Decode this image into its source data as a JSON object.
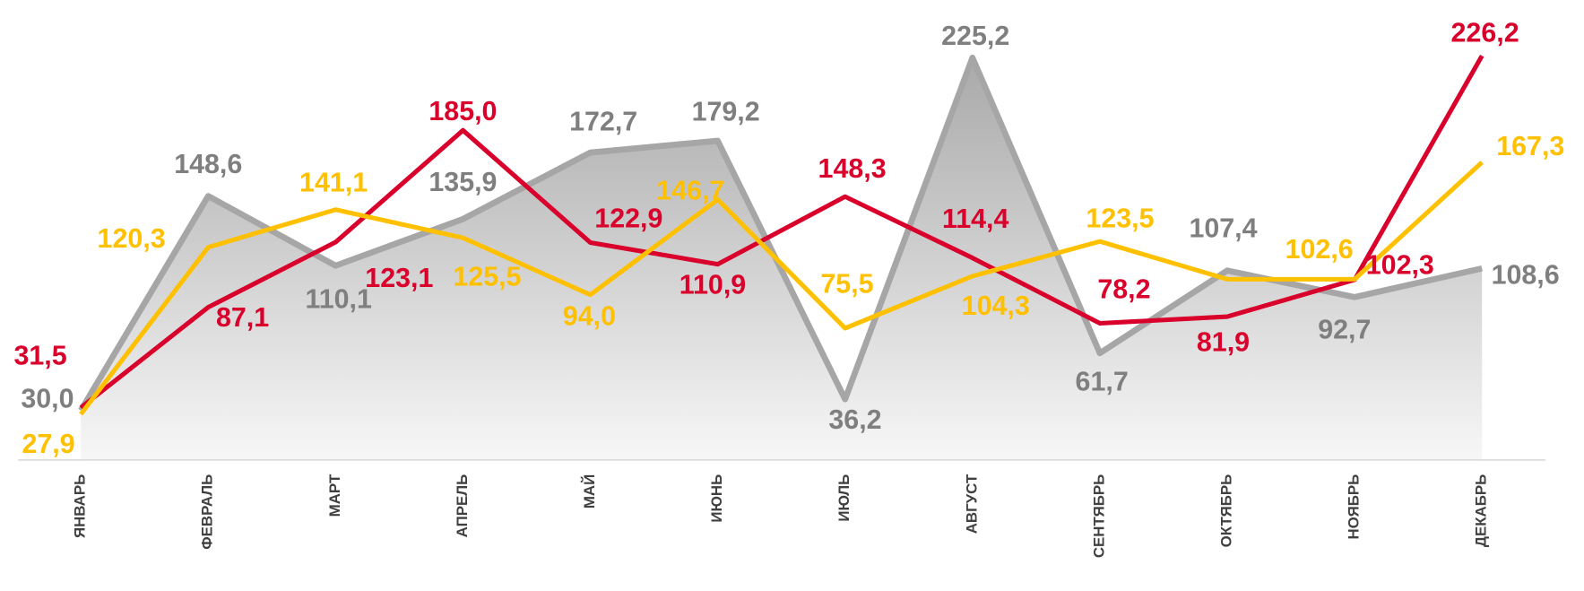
{
  "chart_data": {
    "type": "line",
    "categories": [
      "ЯНВАРЬ",
      "ФЕВРАЛЬ",
      "МАРТ",
      "АПРЕЛЬ",
      "МАЙ",
      "ИЮНЬ",
      "ИЮЛЬ",
      "АВГУСТ",
      "СЕНТЯБРЬ",
      "ОКТЯБРЬ",
      "НОЯБРЬ",
      "ДЕКАБРЬ"
    ],
    "ylim": [
      0,
      240
    ],
    "series": [
      {
        "color": "#a6a6a6",
        "label_color": "#7f7f7f",
        "area": true,
        "values": [
          30.0,
          148.6,
          110.1,
          135.9,
          172.7,
          179.2,
          36.2,
          225.2,
          61.7,
          107.4,
          92.7,
          108.6
        ],
        "value_labels": [
          "30,0",
          "148,6",
          "110,1",
          "135,9",
          "172,7",
          "179,2",
          "36,2",
          "225,2",
          "61,7",
          "107,4",
          "92,7",
          "108,6"
        ]
      },
      {
        "color": "#d9002b",
        "label_color": "#d9002b",
        "values": [
          31.5,
          87.1,
          123.1,
          185.0,
          122.9,
          110.9,
          148.3,
          114.4,
          78.2,
          81.9,
          102.3,
          226.2
        ],
        "value_labels": [
          "31,5",
          "87,1",
          "123,1",
          "185,0",
          "122,9",
          "110,9",
          "148,3",
          "114,4",
          "78,2",
          "81,9",
          "102,3",
          "226,2"
        ]
      },
      {
        "color": "#ffc000",
        "label_color": "#ffc000",
        "values": [
          27.9,
          120.3,
          141.1,
          125.5,
          94.0,
          146.7,
          75.5,
          104.3,
          123.5,
          102.6,
          102.6,
          167.3
        ],
        "value_labels": [
          "27,9",
          "120,3",
          "141,1",
          "125,5",
          "94,0",
          "146,7",
          "75,5",
          "104,3",
          "123,5",
          null,
          "102,6",
          "167,3"
        ]
      }
    ]
  }
}
